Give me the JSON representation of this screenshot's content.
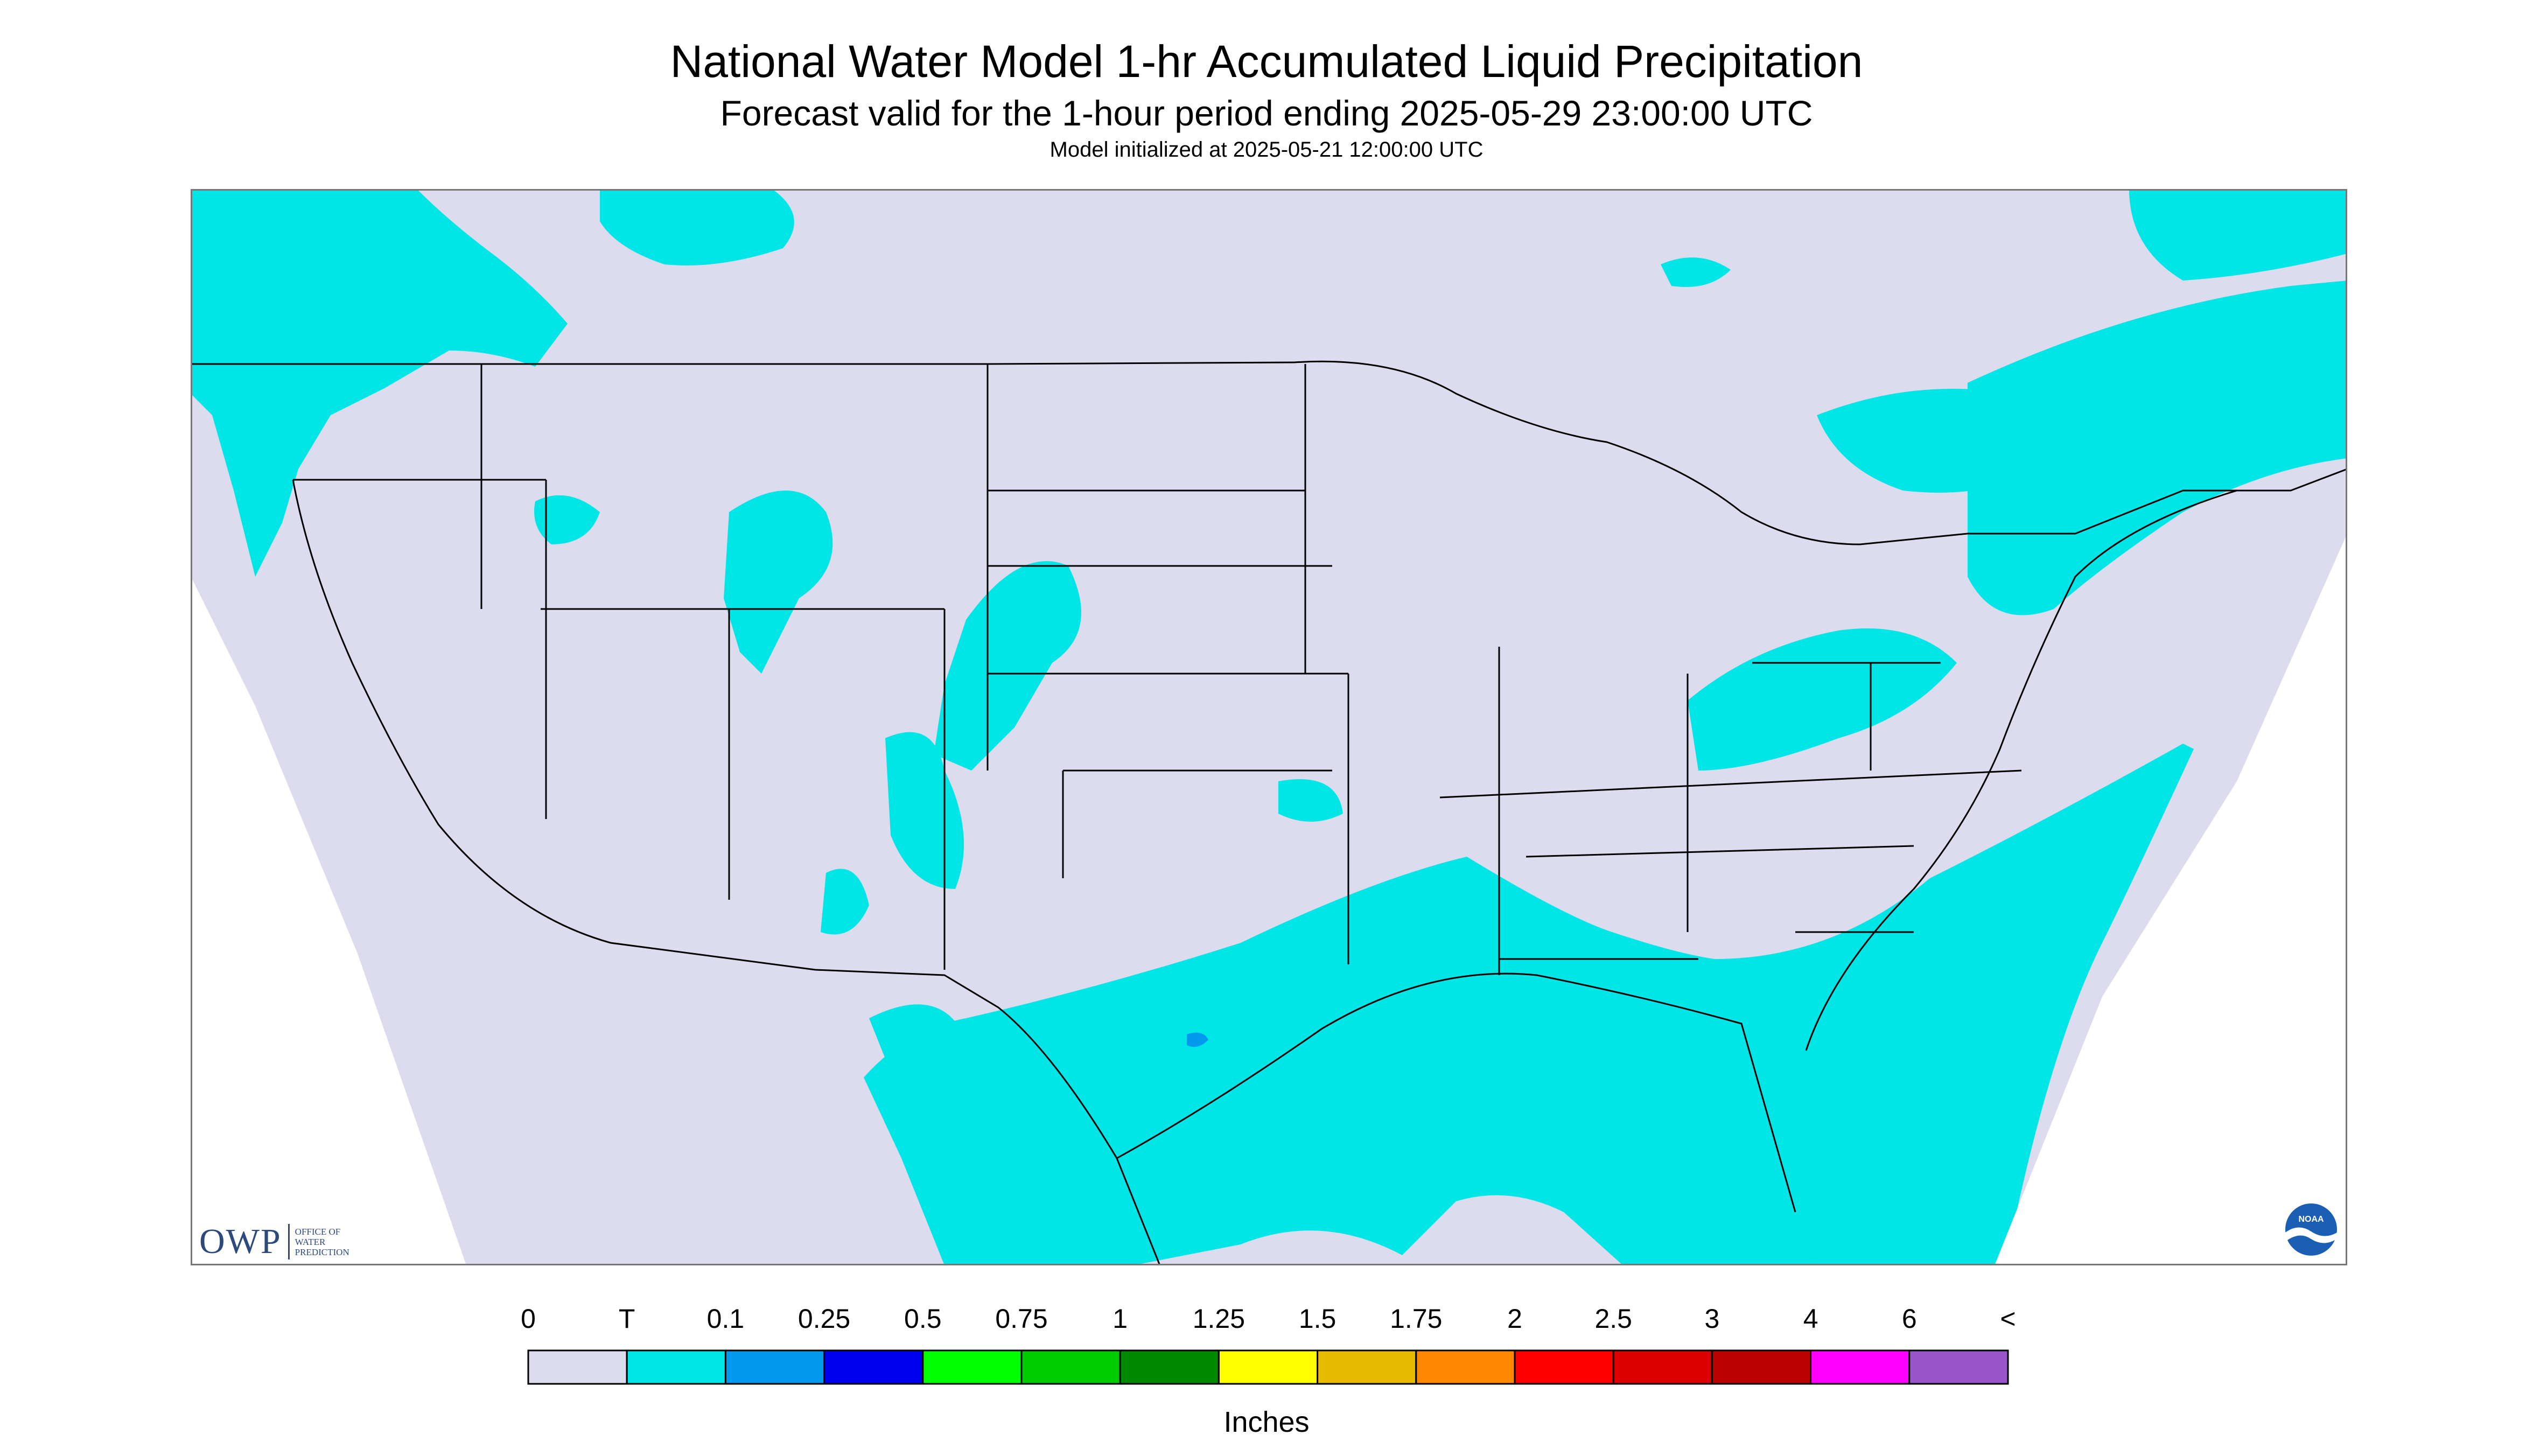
{
  "header": {
    "title": "National Water Model 1-hr Accumulated Liquid Precipitation",
    "subtitle": "Forecast valid for the 1-hour period ending 2025-05-29 23:00:00 UTC",
    "init_line": "Model initialized at 2025-05-21 12:00:00 UTC"
  },
  "logos": {
    "owp_letters": "OWP",
    "owp_text": [
      "OFFICE OF",
      "WATER",
      "PREDICTION"
    ],
    "noaa_text": "NOAA"
  },
  "map": {
    "background_color": "#dcdcee",
    "frame_color": "#ffffff",
    "boundary_color": "#000000",
    "precip_trace_color": "#00e5e5",
    "precip_01_color": "#0099ee"
  },
  "legend": {
    "labels": [
      "0",
      "T",
      "0.1",
      "0.25",
      "0.5",
      "0.75",
      "1",
      "1.25",
      "1.5",
      "1.75",
      "2",
      "2.5",
      "3",
      "4",
      "6",
      "<"
    ],
    "colors": [
      "#dcdcee",
      "#00e5e5",
      "#0099ee",
      "#0000ee",
      "#00ff00",
      "#00cc00",
      "#008800",
      "#ffff00",
      "#e6bb00",
      "#ff8800",
      "#ff0000",
      "#dd0000",
      "#bb0000",
      "#ff00ff",
      "#9955cc"
    ],
    "unit_label": "Inches"
  }
}
